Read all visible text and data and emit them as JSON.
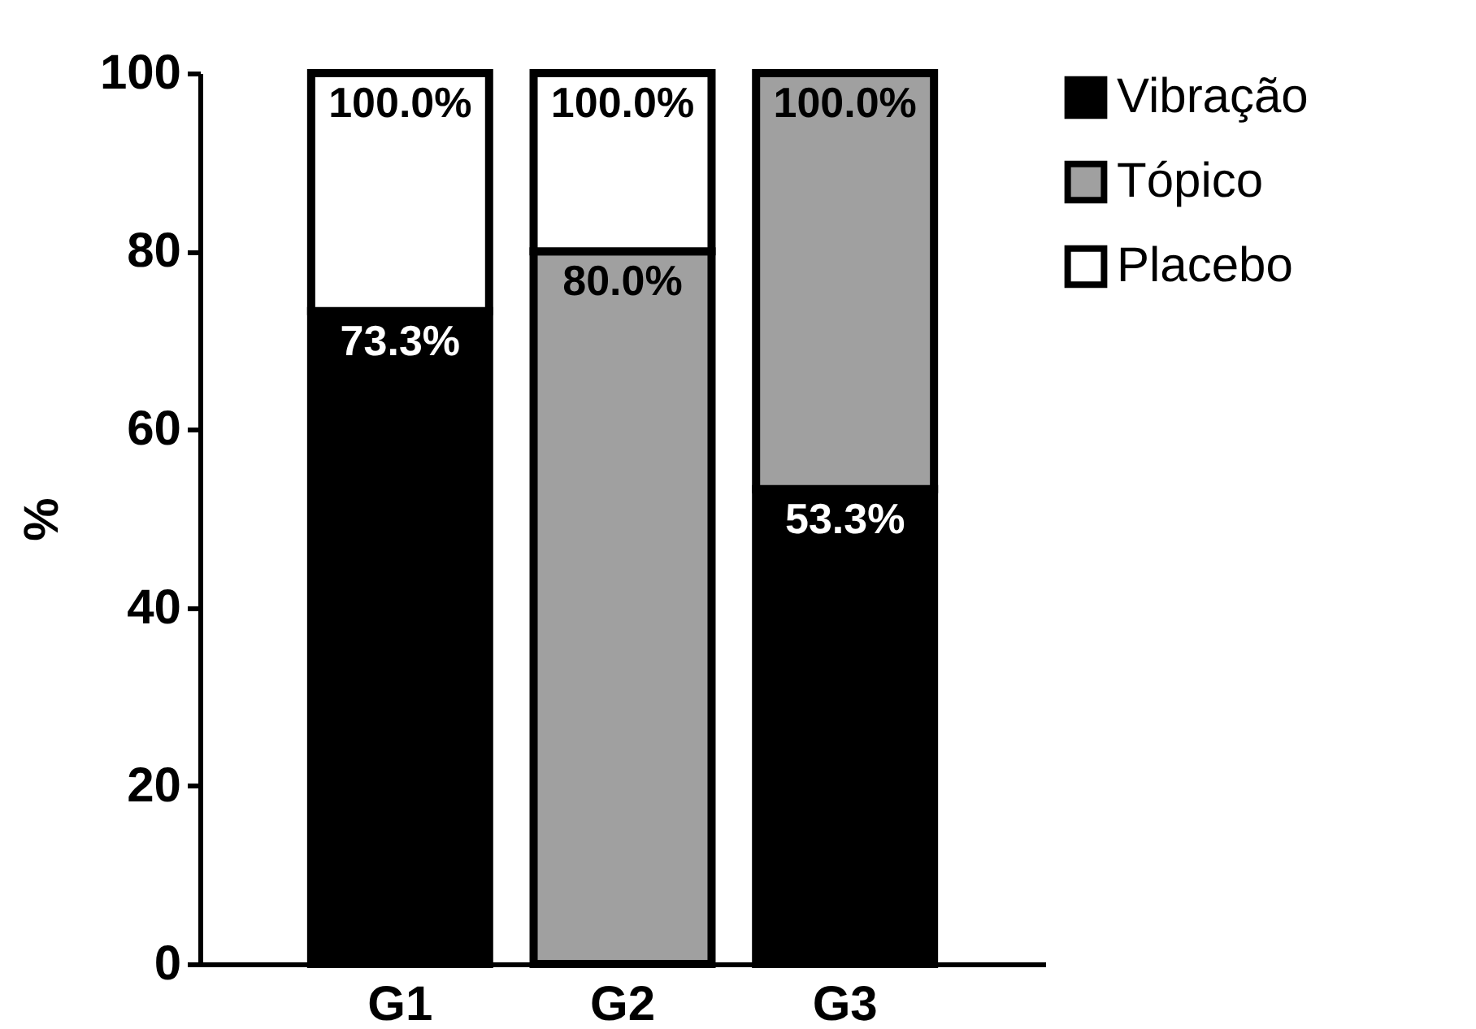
{
  "chart_data": {
    "type": "bar",
    "stacked": true,
    "ylabel": "%",
    "categories": [
      "G1",
      "G2",
      "G3"
    ],
    "series": [
      {
        "name": "Vibração",
        "color": "#000000",
        "values": [
          73.3,
          null,
          53.3
        ],
        "value_labels": [
          "73.3%",
          null,
          "53.3%"
        ]
      },
      {
        "name": "Tópico",
        "color": "#a0a0a0",
        "values": [
          null,
          80,
          46.7
        ],
        "value_labels": [
          null,
          "80.0%",
          null
        ]
      },
      {
        "name": "Placebo",
        "color": "#ffffff",
        "values": [
          26.7,
          20,
          null
        ]
      }
    ],
    "totals": [
      "100.0%",
      "100.0%",
      "100.0%"
    ],
    "ylim": [
      0,
      100
    ],
    "yticks": [
      0,
      20,
      40,
      60,
      80,
      100
    ],
    "grid": false,
    "legend": "top right"
  }
}
